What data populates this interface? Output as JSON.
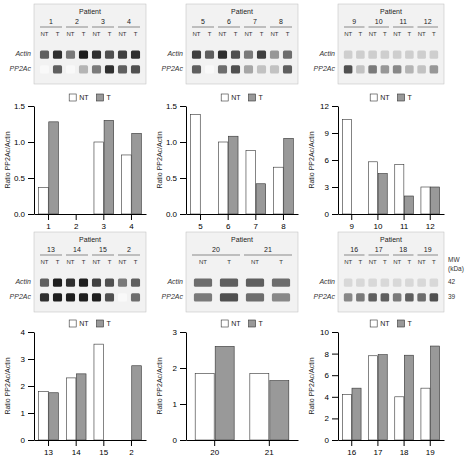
{
  "chart_data": [
    {
      "type": "heatmap",
      "title": "Patient",
      "patients": [
        "1",
        "2",
        "3",
        "4"
      ],
      "categories": [
        "NT",
        "T",
        "NT",
        "T",
        "NT",
        "T",
        "NT",
        "T"
      ],
      "rows": [
        "Actin",
        "PP2Ac"
      ],
      "cells": [
        [
          0.7,
          0.85,
          0.6,
          0.9,
          0.85,
          0.75,
          0.8,
          0.85
        ],
        [
          0.05,
          0.7,
          0.05,
          0.4,
          0.6,
          0.85,
          0.7,
          0.75
        ]
      ]
    },
    {
      "type": "heatmap",
      "title": "Patient",
      "patients": [
        "5",
        "6",
        "7",
        "8"
      ],
      "categories": [
        "NT",
        "T",
        "NT",
        "T",
        "NT",
        "T",
        "NT",
        "T"
      ],
      "rows": [
        "Actin",
        "PP2Ac"
      ],
      "cells": [
        [
          0.8,
          0.7,
          0.85,
          0.75,
          0.6,
          0.8,
          0.5,
          0.65
        ],
        [
          0.7,
          0.05,
          0.65,
          0.75,
          0.45,
          0.35,
          0.35,
          0.7
        ]
      ]
    },
    {
      "type": "heatmap",
      "title": "Patient",
      "patients": [
        "9",
        "10",
        "11",
        "12"
      ],
      "categories": [
        "NT",
        "T",
        "NT",
        "T",
        "NT",
        "T",
        "NT",
        "T"
      ],
      "rows": [
        "Actin",
        "PP2Ac"
      ],
      "cells": [
        [
          0.3,
          0.3,
          0.3,
          0.3,
          0.3,
          0.3,
          0.3,
          0.3
        ],
        [
          0.75,
          0.35,
          0.6,
          0.5,
          0.55,
          0.4,
          0.35,
          0.5
        ]
      ]
    },
    {
      "type": "bar",
      "categories": [
        "1",
        "2",
        "3",
        "4"
      ],
      "series": [
        {
          "name": "NT",
          "color": "#ffffff",
          "values": [
            0.37,
            0.0,
            1.0,
            0.82
          ]
        },
        {
          "name": "T",
          "color": "#999999",
          "values": [
            1.28,
            0.0,
            1.3,
            1.12
          ]
        }
      ],
      "ylim": [
        0,
        1.5
      ],
      "yticks": [
        {
          "value": 0,
          "label": "0.0"
        },
        0.5,
        {
          "value": 1,
          "label": "1.0"
        },
        1.5
      ],
      "ylabel": "Ratio PP2Ac/Actin",
      "legend": "top"
    },
    {
      "type": "bar",
      "categories": [
        "5",
        "6",
        "7",
        "8"
      ],
      "series": [
        {
          "name": "NT",
          "color": "#ffffff",
          "values": [
            1.38,
            1.0,
            0.88,
            0.65
          ]
        },
        {
          "name": "T",
          "color": "#999999",
          "values": [
            0.0,
            1.08,
            0.42,
            1.05
          ]
        }
      ],
      "ylim": [
        0,
        1.5
      ],
      "yticks": [
        {
          "value": 0,
          "label": "0.0"
        },
        0.5,
        {
          "value": 1,
          "label": "1.0"
        },
        1.5
      ],
      "ylabel": "Ratio PP2Ac/Actin",
      "legend": "top"
    },
    {
      "type": "bar",
      "categories": [
        "9",
        "10",
        "11",
        "12"
      ],
      "series": [
        {
          "name": "NT",
          "color": "#ffffff",
          "values": [
            10.5,
            5.8,
            5.5,
            3.0
          ]
        },
        {
          "name": "T",
          "color": "#999999",
          "values": [
            0.0,
            4.5,
            2.0,
            3.0
          ]
        }
      ],
      "ylim": [
        0,
        12
      ],
      "yticks": [
        0,
        3,
        6,
        9,
        12
      ],
      "ylabel": "Ratio PP2Ac/Actin",
      "legend": "top"
    },
    {
      "type": "heatmap",
      "title": "Patient",
      "patients": [
        "13",
        "14",
        "15",
        "2"
      ],
      "categories": [
        "NT",
        "T",
        "NT",
        "T",
        "NT",
        "T",
        "NT",
        "T"
      ],
      "rows": [
        "Actin",
        "PP2Ac"
      ],
      "cells": [
        [
          0.7,
          0.9,
          0.85,
          0.9,
          0.8,
          0.75,
          0.6,
          0.7
        ],
        [
          0.85,
          0.9,
          0.9,
          0.9,
          0.9,
          0.75,
          0.05,
          0.65
        ]
      ]
    },
    {
      "type": "heatmap",
      "title": "Patient",
      "patients": [
        "20",
        "21"
      ],
      "categories": [
        "NT",
        "T",
        "NT",
        "T"
      ],
      "rows": [
        "Actin",
        "PP2Ac"
      ],
      "cells": [
        [
          0.65,
          0.7,
          0.7,
          0.65
        ],
        [
          0.6,
          0.75,
          0.65,
          0.55
        ]
      ]
    },
    {
      "type": "heatmap",
      "title": "Patient",
      "patients": [
        "16",
        "17",
        "18",
        "19"
      ],
      "categories": [
        "NT",
        "T",
        "NT",
        "T",
        "NT",
        "T",
        "NT",
        "T"
      ],
      "rows": [
        "Actin",
        "PP2Ac"
      ],
      "cells": [
        [
          0.25,
          0.25,
          0.25,
          0.25,
          0.25,
          0.25,
          0.25,
          0.25
        ],
        [
          0.55,
          0.6,
          0.7,
          0.7,
          0.6,
          0.7,
          0.65,
          0.75
        ]
      ],
      "annotations": [
        "MW",
        "(kDa)",
        "42",
        "39"
      ]
    },
    {
      "type": "bar",
      "categories": [
        "13",
        "14",
        "15",
        "2"
      ],
      "series": [
        {
          "name": "NT",
          "color": "#ffffff",
          "values": [
            1.8,
            2.3,
            3.55,
            0.0
          ]
        },
        {
          "name": "T",
          "color": "#999999",
          "values": [
            1.75,
            2.45,
            0.0,
            2.75
          ]
        }
      ],
      "ylim": [
        0,
        4
      ],
      "yticks": [
        0,
        1,
        2,
        3,
        4
      ],
      "ylabel": "Ratio PP2Ac/Actin",
      "legend": "top"
    },
    {
      "type": "bar",
      "categories": [
        "20",
        "21"
      ],
      "series": [
        {
          "name": "NT",
          "color": "#ffffff",
          "values": [
            1.85,
            1.85
          ]
        },
        {
          "name": "T",
          "color": "#999999",
          "values": [
            2.6,
            1.65
          ]
        }
      ],
      "ylim": [
        0,
        3
      ],
      "yticks": [
        0,
        1,
        2,
        3
      ],
      "ylabel": "Ratio PP2Ac/Actin",
      "legend": "top"
    },
    {
      "type": "bar",
      "categories": [
        "16",
        "17",
        "18",
        "19"
      ],
      "series": [
        {
          "name": "NT",
          "color": "#ffffff",
          "values": [
            4.2,
            7.8,
            4.0,
            4.8
          ]
        },
        {
          "name": "T",
          "color": "#999999",
          "values": [
            4.8,
            7.9,
            7.85,
            8.7
          ]
        }
      ],
      "ylim": [
        0,
        10
      ],
      "yticks": [
        0,
        2,
        4,
        6,
        8,
        10
      ],
      "ylabel": "Ratio PP2Ac/Actin",
      "legend": "top"
    }
  ]
}
